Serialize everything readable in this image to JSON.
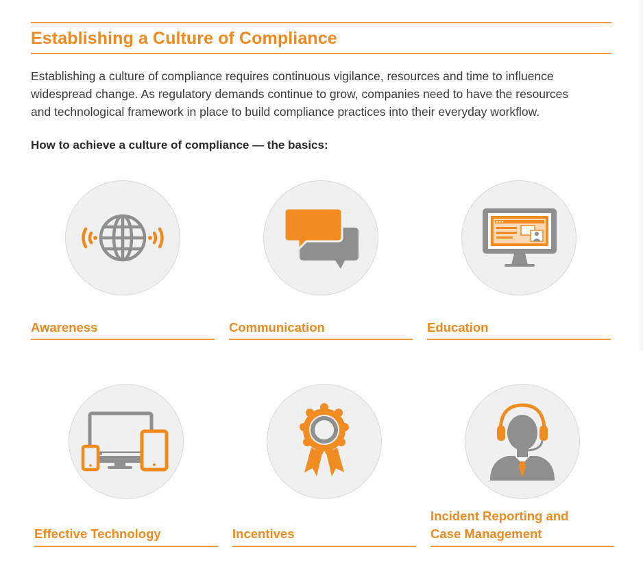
{
  "document": {
    "title": "Establishing a Culture of Compliance",
    "intro_lines": [
      "Establishing a culture of compliance requires continuous vigilance, resources and time to influence",
      "widespread change. As regulatory demands continue to grow, companies need to have the resources",
      "and technological framework in place to build compliance practices into their everyday workflow."
    ],
    "subheading": "How to achieve a culture of compliance — the basics:"
  },
  "basics": [
    {
      "label": "Awareness",
      "icon": "globe-broadcast-icon"
    },
    {
      "label": "Communication",
      "icon": "speech-bubbles-icon"
    },
    {
      "label": "Education",
      "icon": "monitor-presentation-icon"
    },
    {
      "label": "Effective Technology",
      "icon": "multi-device-icon"
    },
    {
      "label": "Incentives",
      "icon": "award-ribbon-icon"
    },
    {
      "label_lines": [
        "Incident Reporting and",
        "Case Management"
      ],
      "icon": "headset-agent-icon"
    }
  ],
  "colors": {
    "accent": "#ef8a1f",
    "icon_gray": "#8f8f8f",
    "circle_fill": "#f1f0f0",
    "text": "#3b3b3b"
  }
}
